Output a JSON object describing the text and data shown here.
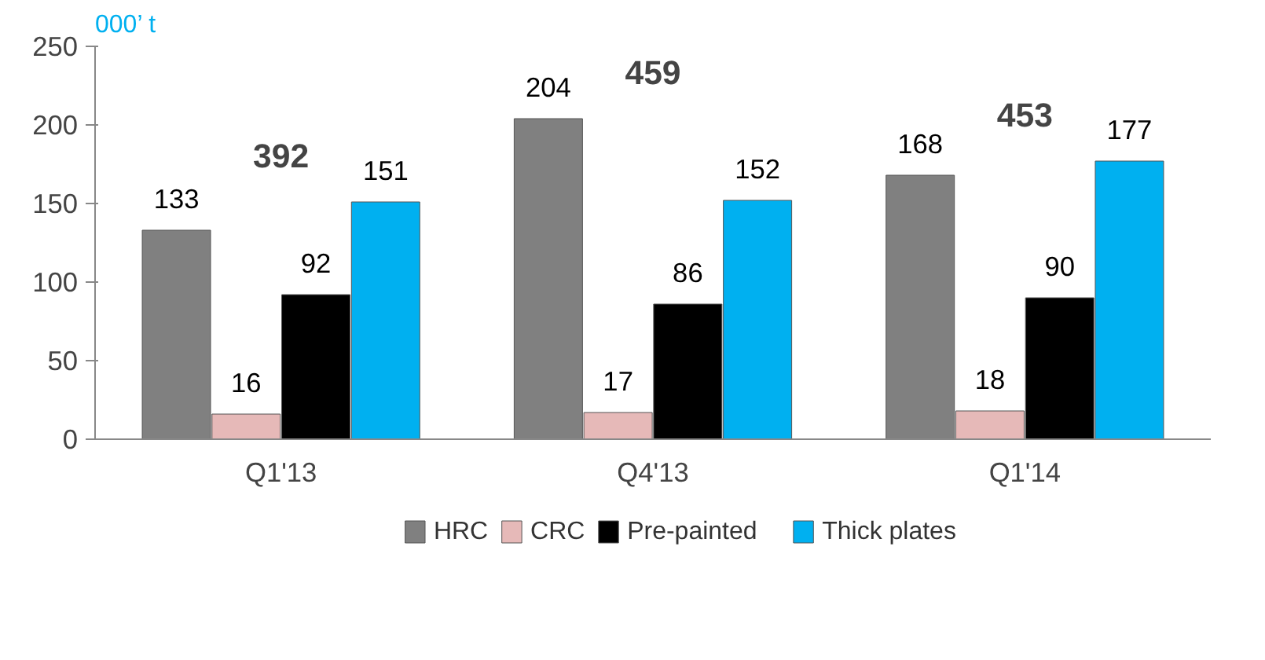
{
  "chart_data": {
    "type": "bar",
    "categories": [
      "Q1'13",
      "Q4'13",
      "Q1'14"
    ],
    "series": [
      {
        "name": "HRC",
        "color": "#808080",
        "values": [
          133,
          204,
          168
        ]
      },
      {
        "name": "CRC",
        "color": "#e6b9b8",
        "values": [
          16,
          17,
          18
        ]
      },
      {
        "name": "Pre-painted",
        "color": "#000000",
        "values": [
          92,
          86,
          90
        ]
      },
      {
        "name": "Thick plates",
        "color": "#00b0f0",
        "values": [
          151,
          152,
          177
        ]
      }
    ],
    "ylim": [
      0,
      250
    ],
    "yticks": [
      0,
      50,
      100,
      150,
      200,
      250
    ],
    "annotations": [
      "000’ t"
    ],
    "totals": [
      "392",
      "459",
      "453"
    ],
    "data_labels": true,
    "grid": false,
    "legend": "bottom"
  }
}
